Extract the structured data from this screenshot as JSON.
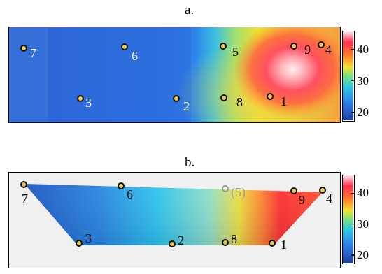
{
  "panels": {
    "a": {
      "label": "a."
    },
    "b": {
      "label": "b."
    }
  },
  "colorbar": {
    "ticks": [
      {
        "label": "40",
        "value": 40
      },
      {
        "label": "30",
        "value": 30
      },
      {
        "label": "20",
        "value": 20
      }
    ],
    "min": 17,
    "max": 46
  },
  "sensors_a": [
    {
      "id": "7",
      "label": "7"
    },
    {
      "id": "6",
      "label": "6"
    },
    {
      "id": "5",
      "label": "5"
    },
    {
      "id": "9",
      "label": "9"
    },
    {
      "id": "4",
      "label": "4"
    },
    {
      "id": "3",
      "label": "3"
    },
    {
      "id": "2",
      "label": "2"
    },
    {
      "id": "8",
      "label": "8"
    },
    {
      "id": "1",
      "label": "1"
    }
  ],
  "sensors_b": [
    {
      "id": "7",
      "label": "7"
    },
    {
      "id": "6",
      "label": "6"
    },
    {
      "id": "5",
      "label": "(5)",
      "muted": true
    },
    {
      "id": "9",
      "label": "9"
    },
    {
      "id": "4",
      "label": "4"
    },
    {
      "id": "3",
      "label": "3"
    },
    {
      "id": "2",
      "label": "2"
    },
    {
      "id": "8",
      "label": "8"
    },
    {
      "id": "1",
      "label": "1"
    }
  ],
  "colors": {
    "label_light": "#ffffff",
    "label_dark": "#000000",
    "label_muted": "#a0a0a0",
    "marker_fill": "#f2c94c"
  }
}
